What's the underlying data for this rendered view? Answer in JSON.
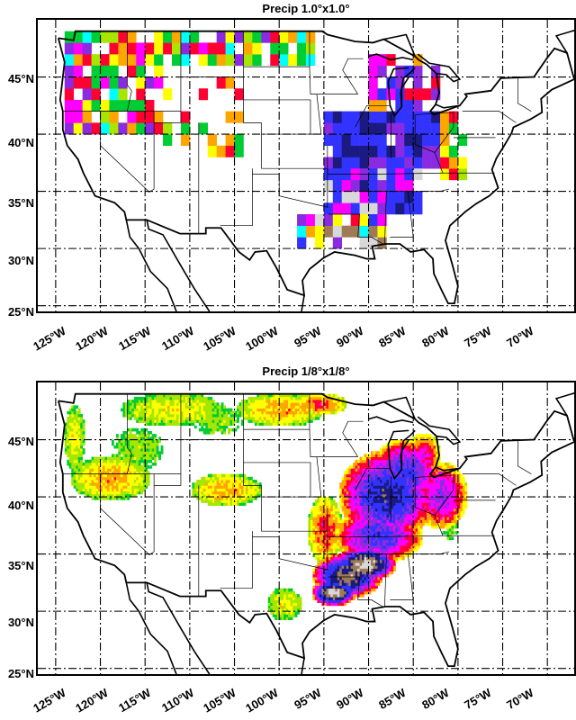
{
  "panels": [
    {
      "title": "Precip 1.0°x1.0°",
      "resolution": "coarse"
    },
    {
      "title": "Precip 1/8°x1/8°",
      "resolution": "fine"
    }
  ],
  "lat_labels": [
    "45°N",
    "40°N",
    "35°N",
    "30°N",
    "25°N"
  ],
  "lon_labels": [
    "125°W",
    "120°W",
    "115°W",
    "110°W",
    "105°W",
    "100°W",
    "95°W",
    "90°W",
    "85°W",
    "80°W",
    "75°W",
    "70°W"
  ],
  "colors": {
    "palette": [
      "#00ffff",
      "#00cc33",
      "#a6e600",
      "#ffff00",
      "#ffa500",
      "#ff0033",
      "#ff00ff",
      "#8a2be2",
      "#3333ff",
      "#1a1a80",
      "#9e7b56",
      "#d8d8d8"
    ]
  }
}
